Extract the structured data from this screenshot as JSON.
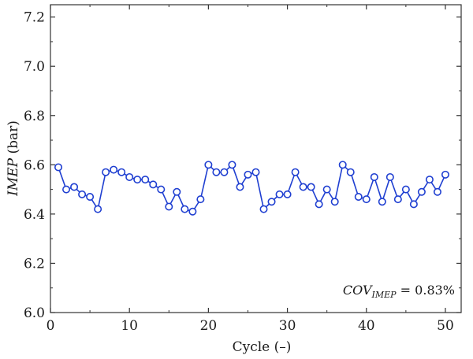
{
  "chart_data": {
    "type": "line",
    "title": "",
    "xlabel": "Cycle (–)",
    "ylabel": {
      "italic": "IMEP",
      "plain": " (bar)"
    },
    "xlim": [
      0,
      52
    ],
    "ylim": [
      6.0,
      7.25
    ],
    "xticks": [
      0,
      10,
      20,
      30,
      40,
      50
    ],
    "yticks": [
      6.0,
      6.2,
      6.4,
      6.6,
      6.8,
      7.0,
      7.2
    ],
    "ytick_labels": [
      "6.0",
      "6.2",
      "6.4",
      "6.6",
      "6.8",
      "7.0",
      "7.2"
    ],
    "grid": false,
    "series": [
      {
        "color": "#1f3fd1",
        "marker": "open-circle",
        "x": [
          1,
          2,
          3,
          4,
          5,
          6,
          7,
          8,
          9,
          10,
          11,
          12,
          13,
          14,
          15,
          16,
          17,
          18,
          19,
          20,
          21,
          22,
          23,
          24,
          25,
          26,
          27,
          28,
          29,
          30,
          31,
          32,
          33,
          34,
          35,
          36,
          37,
          38,
          39,
          40,
          41,
          42,
          43,
          44,
          45,
          46,
          47,
          48,
          49,
          50
        ],
        "y": [
          6.59,
          6.5,
          6.51,
          6.48,
          6.47,
          6.42,
          6.57,
          6.58,
          6.57,
          6.55,
          6.54,
          6.54,
          6.52,
          6.5,
          6.43,
          6.49,
          6.42,
          6.41,
          6.46,
          6.6,
          6.57,
          6.57,
          6.6,
          6.51,
          6.56,
          6.57,
          6.42,
          6.45,
          6.48,
          6.48,
          6.57,
          6.51,
          6.51,
          6.44,
          6.5,
          6.45,
          6.6,
          6.57,
          6.47,
          6.46,
          6.55,
          6.45,
          6.55,
          6.46,
          6.5,
          6.44,
          6.49,
          6.54,
          6.49,
          6.56
        ]
      }
    ],
    "annotation": {
      "main": "COV",
      "subscript": "IMEP",
      "value": " = 0.83%",
      "position": "bottom-right"
    }
  }
}
